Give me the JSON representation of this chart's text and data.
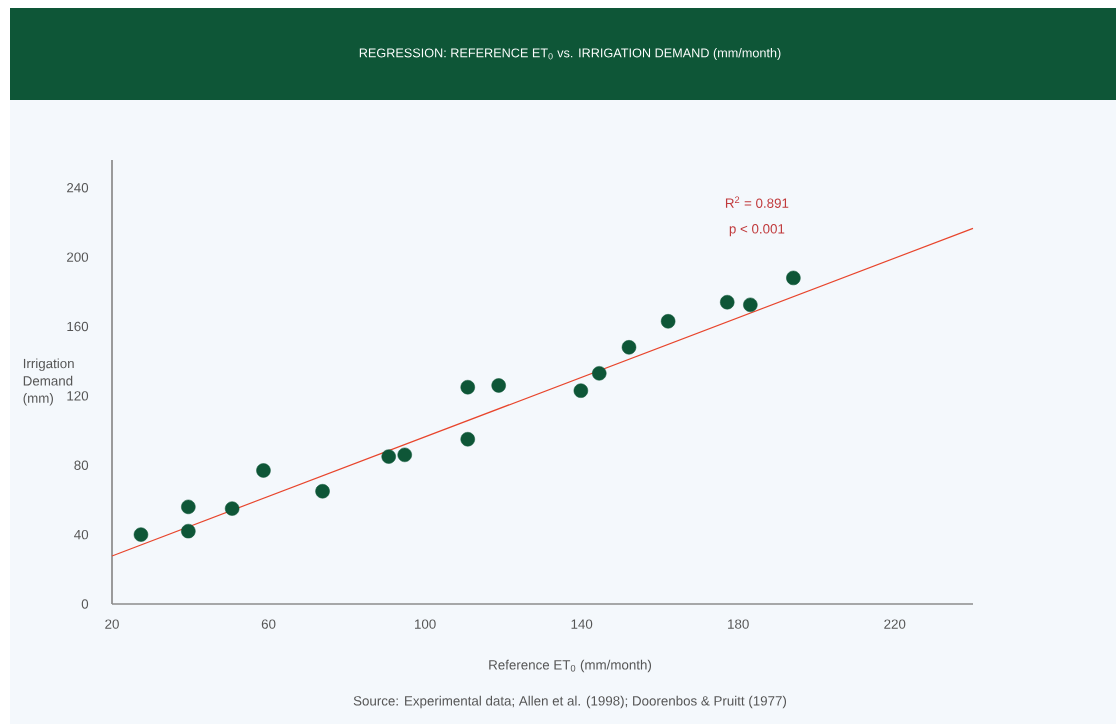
{
  "chart_data": {
    "type": "scatter",
    "title": "REGRESSION: REFERENCE ET$_{0}$ vs. IRRIGATION DEMAND (mm/month)",
    "xlabel": "Reference ET$_{0}$ (mm/month)",
    "ylabel": "Irrigation Demand (mm)",
    "annotations": [
      "R$^{2}$ = 0.891",
      "p < 0.001",
      "Source: Experimental data; Allen et al. (1998); Doorenbos & Pruitt (1977)"
    ],
    "xlim": [
      20,
      240
    ],
    "ylim": [
      0,
      256
    ],
    "xticks": [
      20,
      60,
      100,
      140,
      180,
      220
    ],
    "yticks": [
      0,
      40,
      80,
      120,
      160,
      200,
      240
    ],
    "series": [
      {
        "marker": "circle",
        "color": "#0e5637",
        "x": [
          27.4,
          39.5,
          39.5,
          50.7,
          58.7,
          73.8,
          90.7,
          94.8,
          110.9,
          110.9,
          118.8,
          139.8,
          144.5,
          152.1,
          162.1,
          177.2,
          183.1,
          194.1
        ],
        "values": [
          40,
          56,
          42,
          55,
          77,
          65,
          85,
          86,
          95,
          125,
          126,
          123,
          133,
          148,
          163,
          174,
          172.5,
          188
        ]
      },
      {
        "type": "line",
        "color": "#e8452c",
        "x": [
          20,
          240
        ],
        "values": [
          27.7,
          216.6
        ]
      }
    ]
  }
}
